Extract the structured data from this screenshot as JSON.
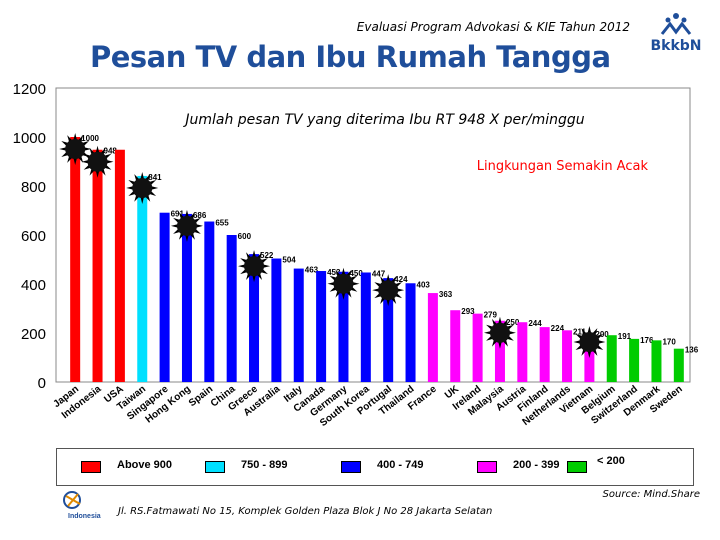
{
  "header": {
    "subtitle": "Evaluasi Program Advokasi & KIE Tahun 2012",
    "title": "Pesan TV dan Ibu Rumah Tangga",
    "logo_text": "BkkbN"
  },
  "colors": {
    "above_900": "#ff0000",
    "r750_899": "#00e0ff",
    "r400_749": "#0000ff",
    "r200_399": "#ff00ff",
    "below_200": "#00cc00",
    "annotation": "#ff0000",
    "plot_bg": "#ffffff"
  },
  "chart_data": {
    "type": "bar",
    "title": "Jumlah pesan TV yang diterima Ibu RT 948 X per/minggu",
    "annotation": "Lingkungan Semakin Acak",
    "ylim": [
      0,
      1200
    ],
    "yticks": [
      "0",
      "200",
      "400",
      "600",
      "800",
      "1000",
      "1200"
    ],
    "ytick_values": [
      0,
      200,
      400,
      600,
      800,
      1000,
      1200
    ],
    "grid": false,
    "categories": [
      "Japan",
      "Indonesia",
      "USA",
      "Taiwan",
      "Singapore",
      "Hong Kong",
      "Spain",
      "China",
      "Greece",
      "Australia",
      "Italy",
      "Canada",
      "Germany",
      "South Korea",
      "Portugal",
      "Thailand",
      "France",
      "UK",
      "Ireland",
      "Malaysia",
      "Austria",
      "Finland",
      "Netherlands",
      "Vietnam",
      "Belgium",
      "Switzerland",
      "Denmark",
      "Sweden"
    ],
    "values": [
      1000,
      948,
      948,
      841,
      691,
      686,
      655,
      600,
      522,
      504,
      463,
      453,
      450,
      447,
      424,
      403,
      363,
      293,
      279,
      250,
      244,
      224,
      211,
      200,
      191,
      176,
      170,
      136
    ],
    "labels": [
      "1000",
      "948",
      "",
      "841",
      "691",
      "686",
      "655",
      "600",
      "522",
      "504",
      "463",
      "453",
      "450",
      "447",
      "424",
      "403",
      "363",
      "293",
      "279",
      "250",
      "244",
      "224",
      "211",
      "200",
      "191",
      "176",
      "170",
      "136"
    ],
    "bar_groups": [
      "above_900",
      "above_900",
      "above_900",
      "r750_899",
      "r400_749",
      "r400_749",
      "r400_749",
      "r400_749",
      "r400_749",
      "r400_749",
      "r400_749",
      "r400_749",
      "r400_749",
      "r400_749",
      "r400_749",
      "r400_749",
      "r200_399",
      "r200_399",
      "r200_399",
      "r200_399",
      "r200_399",
      "r200_399",
      "r200_399",
      "r200_399",
      "below_200",
      "below_200",
      "below_200",
      "below_200"
    ],
    "legend": [
      {
        "label": "Above 900",
        "group": "above_900"
      },
      {
        "label": "750 - 899",
        "group": "r750_899"
      },
      {
        "label": "400 - 749",
        "group": "r400_749"
      },
      {
        "label": "200 - 399",
        "group": "r200_399"
      },
      {
        "label": "< 200",
        "group": "below_200"
      }
    ],
    "legend_position": "bottom",
    "sun_marker_bars": [
      0,
      1,
      3,
      5,
      8,
      12,
      14,
      19,
      23
    ]
  },
  "footer": {
    "address": "Jl. RS.Fatmawati No 15, Komplek Golden Plaza Blok J No 28 Jakarta Selatan",
    "source": "Source: Mind.Share",
    "logo_text": "Indonesia"
  }
}
